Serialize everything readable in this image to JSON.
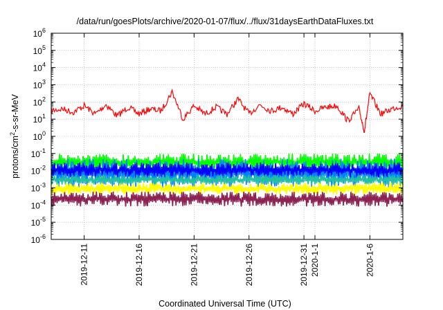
{
  "chart_data": {
    "type": "line",
    "title": "/data/run/goesPlots/archive/2020-01-07/flux/../flux/31daysEarthDataFluxes.txt",
    "xlabel": "Coordinated Universal Time (UTC)",
    "ylabel": {
      "prefix": "protons/cm",
      "sup": "2",
      "suffix": "-s-sr-MeV"
    },
    "x_range": [
      "2019-12-08T00:00",
      "2020-01-09T00:00"
    ],
    "y_scale": "log",
    "ylim": [
      1e-06,
      1000000.0
    ],
    "grid": true,
    "y_ticks": [
      {
        "base": "10",
        "exp": "-6"
      },
      {
        "base": "10",
        "exp": "-5"
      },
      {
        "base": "10",
        "exp": "-4"
      },
      {
        "base": "10",
        "exp": "-3"
      },
      {
        "base": "10",
        "exp": "-2"
      },
      {
        "base": "10",
        "exp": "-1"
      },
      {
        "base": "10",
        "exp": "0"
      },
      {
        "base": "10",
        "exp": "1"
      },
      {
        "base": "10",
        "exp": "2"
      },
      {
        "base": "10",
        "exp": "3"
      },
      {
        "base": "10",
        "exp": "4"
      },
      {
        "base": "10",
        "exp": "5"
      },
      {
        "base": "10",
        "exp": "6"
      }
    ],
    "x_ticks": [
      {
        "label": "2019-12-11",
        "date": "2019-12-11"
      },
      {
        "label": "2019-12-16",
        "date": "2019-12-16"
      },
      {
        "label": "2019-12-21",
        "date": "2019-12-21"
      },
      {
        "label": "2019-12-26",
        "date": "2019-12-26"
      },
      {
        "label": "2019-12-31",
        "date": "2019-12-31"
      },
      {
        "label": "2020-1-1",
        "date": "2020-01-01"
      },
      {
        "label": "2020-1-6",
        "date": "2020-01-06"
      }
    ],
    "series": [
      {
        "color": "#ff0000",
        "typical_range": [
          2,
          100
        ],
        "points": [
          [
            "2019-12-08T00:00",
            30
          ],
          [
            "2019-12-09T00:00",
            40
          ],
          [
            "2019-12-10T00:00",
            25
          ],
          [
            "2019-12-11T00:00",
            60
          ],
          [
            "2019-12-12T00:00",
            20
          ],
          [
            "2019-12-13T00:00",
            70
          ],
          [
            "2019-12-14T00:00",
            15
          ],
          [
            "2019-12-15T00:00",
            50
          ],
          [
            "2019-12-16T00:00",
            20
          ],
          [
            "2019-12-17T00:00",
            40
          ],
          [
            "2019-12-18T00:00",
            30
          ],
          [
            "2019-12-19T00:00",
            400
          ],
          [
            "2019-12-20T00:00",
            10
          ],
          [
            "2019-12-21T00:00",
            60
          ],
          [
            "2019-12-22T00:00",
            20
          ],
          [
            "2019-12-23T00:00",
            50
          ],
          [
            "2019-12-24T00:00",
            20
          ],
          [
            "2019-12-25T00:00",
            150
          ],
          [
            "2019-12-26T00:00",
            20
          ],
          [
            "2019-12-27T00:00",
            70
          ],
          [
            "2019-12-28T00:00",
            30
          ],
          [
            "2019-12-29T00:00",
            50
          ],
          [
            "2019-12-30T00:00",
            20
          ],
          [
            "2019-12-31T00:00",
            80
          ],
          [
            "2020-01-01T00:00",
            30
          ],
          [
            "2020-01-02T00:00",
            50
          ],
          [
            "2020-01-03T00:00",
            60
          ],
          [
            "2020-01-04T00:00",
            8
          ],
          [
            "2020-01-05T00:00",
            40
          ],
          [
            "2020-01-05T12:00",
            2
          ],
          [
            "2020-01-06T00:00",
            300
          ],
          [
            "2020-01-07T00:00",
            20
          ],
          [
            "2020-01-08T00:00",
            40
          ],
          [
            "2020-01-09T00:00",
            60
          ]
        ]
      },
      {
        "color": "#00ff00",
        "typical_range": [
          0.01,
          0.1
        ],
        "points": []
      },
      {
        "color": "#0080ff",
        "typical_range": [
          0.001,
          0.05
        ],
        "points": []
      },
      {
        "color": "#0000ff",
        "typical_range": [
          0.004,
          0.03
        ],
        "points": []
      },
      {
        "color": "#20c0a0",
        "typical_range": [
          0.0015,
          0.006
        ],
        "points": []
      },
      {
        "color": "#ffff00",
        "typical_range": [
          0.0004,
          0.002
        ],
        "points": []
      },
      {
        "color": "#8b2252",
        "typical_range": [
          8e-05,
          0.0006
        ],
        "points": []
      }
    ]
  }
}
